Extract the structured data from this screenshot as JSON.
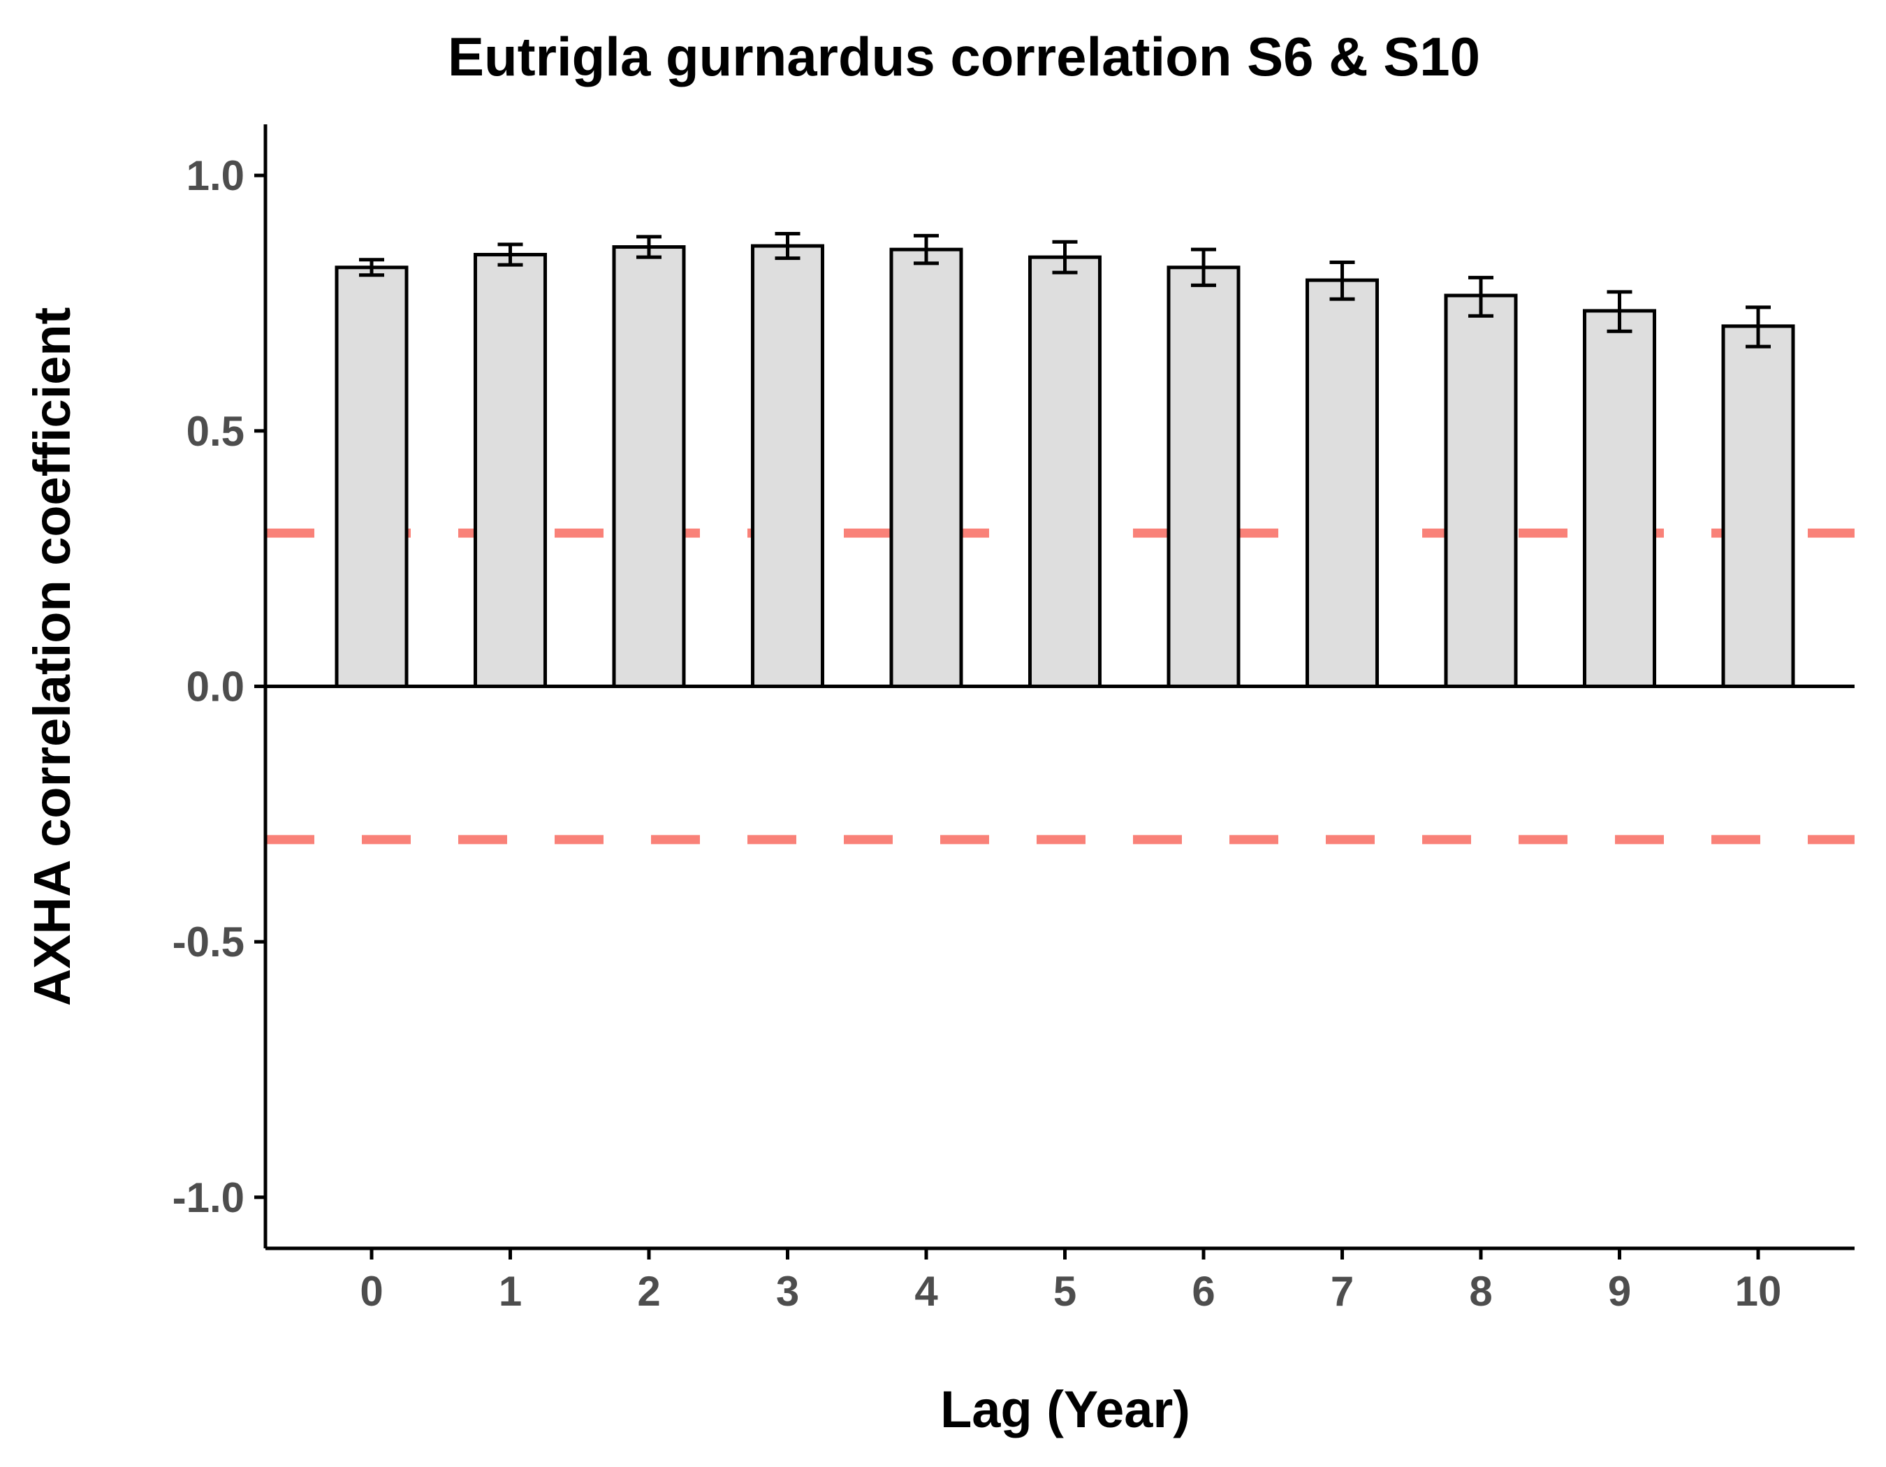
{
  "chart_data": {
    "type": "bar",
    "title": "Eutrigla gurnardus correlation S6 & S10",
    "xlabel": "Lag (Year)",
    "ylabel": "AXHA correlation coefficient",
    "categories": [
      "0",
      "1",
      "2",
      "3",
      "4",
      "5",
      "6",
      "7",
      "8",
      "9",
      "10"
    ],
    "values": [
      0.82,
      0.845,
      0.86,
      0.862,
      0.855,
      0.84,
      0.82,
      0.795,
      0.765,
      0.735,
      0.705
    ],
    "error_low": [
      0.805,
      0.825,
      0.84,
      0.838,
      0.828,
      0.81,
      0.785,
      0.758,
      0.725,
      0.695,
      0.665
    ],
    "error_high": [
      0.835,
      0.865,
      0.88,
      0.886,
      0.882,
      0.87,
      0.855,
      0.83,
      0.8,
      0.772,
      0.742
    ],
    "ylim": [
      -1.1,
      1.1
    ],
    "yticks": [
      "-1.0",
      "-0.5",
      "0.0",
      "0.5",
      "1.0"
    ],
    "ytick_values": [
      -1.0,
      -0.5,
      0.0,
      0.5,
      1.0
    ],
    "zero_line": 0.0,
    "reference_lines": [
      0.3,
      -0.3
    ],
    "reference_line_style": "dashed",
    "grid": false,
    "legend": "none",
    "colors": {
      "bar_fill": "#dedede",
      "bar_stroke": "#000000",
      "reference_line": "#f8766d",
      "tick_label": "#4d4d4d",
      "axis": "#000000"
    }
  }
}
